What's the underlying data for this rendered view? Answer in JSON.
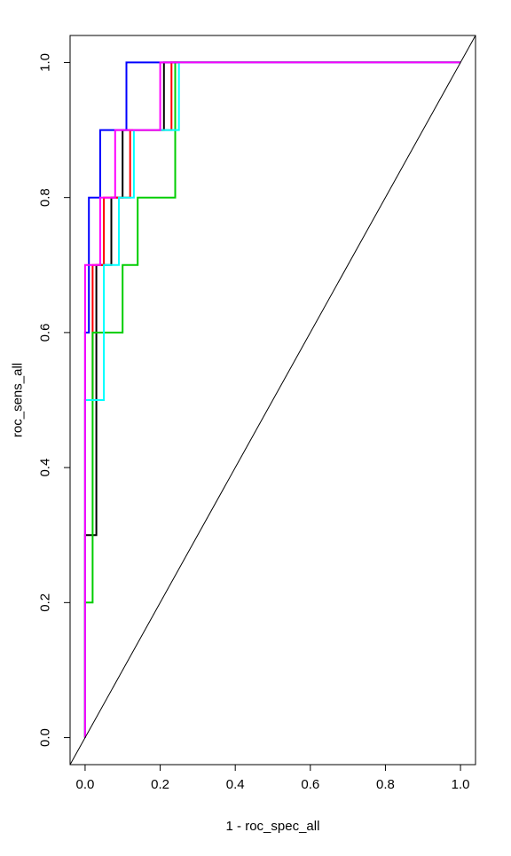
{
  "chart_data": {
    "type": "line",
    "title": "",
    "xlabel": "1 - roc_spec_all",
    "ylabel": "roc_sens_all",
    "xlim": [
      -0.04,
      1.04
    ],
    "ylim": [
      -0.04,
      1.04
    ],
    "x_ticks": [
      0.0,
      0.2,
      0.4,
      0.6,
      0.8,
      1.0
    ],
    "x_tick_labels": [
      "0.0",
      "0.2",
      "0.4",
      "0.6",
      "0.8",
      "1.0"
    ],
    "y_ticks": [
      0.0,
      0.2,
      0.4,
      0.6,
      0.8,
      1.0
    ],
    "y_tick_labels": [
      "0.0",
      "0.2",
      "0.4",
      "0.6",
      "0.8",
      "1.0"
    ],
    "grid": false,
    "legend": "none",
    "reference_line": {
      "x": [
        0,
        1
      ],
      "y": [
        0,
        1
      ],
      "color": "#000000"
    },
    "series": [
      {
        "color": "#000000",
        "x": [
          0,
          0,
          0.03,
          0.03,
          0.07,
          0.07,
          0.1,
          0.1,
          0.21,
          0.21,
          1.0
        ],
        "y": [
          0,
          0.3,
          0.3,
          0.7,
          0.7,
          0.8,
          0.8,
          0.9,
          0.9,
          1.0,
          1.0
        ]
      },
      {
        "color": "#ff0000",
        "x": [
          0,
          0,
          0.02,
          0.02,
          0.05,
          0.05,
          0.12,
          0.12,
          0.23,
          0.23,
          1.0
        ],
        "y": [
          0,
          0.5,
          0.5,
          0.7,
          0.7,
          0.8,
          0.8,
          0.9,
          0.9,
          1.0,
          1.0
        ]
      },
      {
        "color": "#00cd00",
        "x": [
          0,
          0,
          0.02,
          0.02,
          0.1,
          0.1,
          0.14,
          0.14,
          0.24,
          0.24,
          1.0
        ],
        "y": [
          0,
          0.2,
          0.2,
          0.6,
          0.6,
          0.7,
          0.7,
          0.8,
          0.8,
          1.0,
          1.0
        ]
      },
      {
        "color": "#0000ff",
        "x": [
          0,
          0,
          0.01,
          0.01,
          0.04,
          0.04,
          0.11,
          0.11,
          0.22,
          0.22,
          1.0
        ],
        "y": [
          0,
          0.6,
          0.6,
          0.8,
          0.8,
          0.9,
          0.9,
          1.0,
          1.0,
          1.0,
          1.0
        ]
      },
      {
        "color": "#00ffff",
        "x": [
          0,
          0,
          0.05,
          0.05,
          0.09,
          0.09,
          0.13,
          0.13,
          0.25,
          0.25,
          1.0
        ],
        "y": [
          0,
          0.5,
          0.5,
          0.7,
          0.7,
          0.8,
          0.8,
          0.9,
          0.9,
          1.0,
          1.0
        ]
      },
      {
        "color": "#ff00ff",
        "x": [
          0,
          0,
          0.04,
          0.04,
          0.08,
          0.08,
          0.2,
          0.2,
          0.26,
          0.26,
          1.0
        ],
        "y": [
          0,
          0.7,
          0.7,
          0.8,
          0.8,
          0.9,
          0.9,
          1.0,
          1.0,
          1.0,
          1.0
        ]
      }
    ]
  }
}
